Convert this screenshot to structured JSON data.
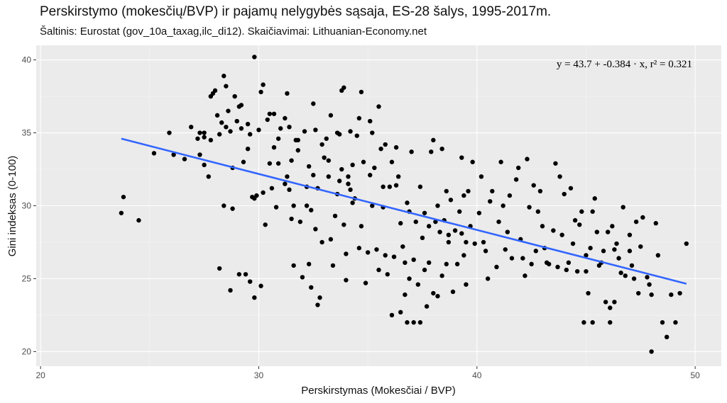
{
  "title": "Perskirstymo (mokesčių/BVP) ir pajamų nelygybės sąsaja, ES-28 šalys, 1995-2017m.",
  "subtitle": "Šaltinis: Eurostat (gov_10a_taxag,ilc_di12). Skaičiavimai: Lithuanian-Economy.net",
  "colors": {
    "panel": "#ebebeb",
    "grid_major": "#ffffff",
    "grid_minor": "#f5f5f5",
    "points": "#000000",
    "fit": "#3366ff"
  },
  "chart_data": {
    "type": "scatter",
    "xlabel": "Perskirstymas (Mokesčiai / BVP)",
    "ylabel": "Gini indeksas (0-100)",
    "xlim": [
      19.8,
      51.2
    ],
    "ylim": [
      19.0,
      41.0
    ],
    "x_ticks": [
      20,
      30,
      40,
      50
    ],
    "y_ticks": [
      20,
      25,
      30,
      35,
      40
    ],
    "grid": true,
    "annotation": "y = 43.7 + -0.384 · x,   r² = 0.321",
    "regression": {
      "intercept": 43.7,
      "slope": -0.384,
      "r2": 0.321,
      "x_range": [
        23.7,
        49.6
      ]
    },
    "points": [
      [
        23.7,
        29.5
      ],
      [
        23.8,
        30.6
      ],
      [
        24.5,
        29.0
      ],
      [
        25.2,
        33.6
      ],
      [
        25.9,
        35.0
      ],
      [
        26.1,
        33.5
      ],
      [
        26.6,
        33.2
      ],
      [
        26.9,
        35.4
      ],
      [
        27.2,
        34.6
      ],
      [
        27.3,
        33.5
      ],
      [
        27.3,
        35.0
      ],
      [
        27.5,
        35.0
      ],
      [
        27.5,
        32.8
      ],
      [
        27.7,
        32.0
      ],
      [
        27.8,
        34.5
      ],
      [
        27.8,
        37.5
      ],
      [
        28.0,
        37.9
      ],
      [
        28.1,
        36.2
      ],
      [
        28.2,
        34.9
      ],
      [
        28.3,
        35.7
      ],
      [
        28.4,
        38.9
      ],
      [
        28.4,
        30.0
      ],
      [
        28.5,
        35.4
      ],
      [
        28.6,
        36.5
      ],
      [
        28.7,
        35.1
      ],
      [
        28.8,
        29.8
      ],
      [
        28.9,
        37.5
      ],
      [
        29.0,
        35.8
      ],
      [
        29.1,
        36.8
      ],
      [
        29.2,
        35.3
      ],
      [
        29.3,
        33.0
      ],
      [
        29.4,
        25.3
      ],
      [
        29.5,
        35.6
      ],
      [
        29.6,
        34.9
      ],
      [
        29.7,
        30.6
      ],
      [
        29.8,
        40.2
      ],
      [
        29.8,
        30.5
      ],
      [
        29.9,
        30.7
      ],
      [
        30.0,
        35.2
      ],
      [
        30.1,
        37.8
      ],
      [
        30.2,
        38.3
      ],
      [
        30.3,
        28.7
      ],
      [
        30.4,
        35.9
      ],
      [
        30.5,
        36.3
      ],
      [
        30.6,
        31.2
      ],
      [
        30.7,
        34.0
      ],
      [
        30.9,
        34.6
      ],
      [
        31.0,
        35.3
      ],
      [
        31.2,
        31.5
      ],
      [
        31.3,
        37.7
      ],
      [
        31.4,
        35.4
      ],
      [
        31.5,
        33.1
      ],
      [
        31.6,
        30.0
      ],
      [
        31.7,
        34.5
      ],
      [
        31.8,
        34.5
      ],
      [
        31.9,
        28.9
      ],
      [
        32.0,
        25.1
      ],
      [
        32.1,
        35.1
      ],
      [
        32.2,
        30.0
      ],
      [
        32.3,
        26.0
      ],
      [
        32.4,
        29.7
      ],
      [
        32.5,
        32.1
      ],
      [
        32.6,
        35.2
      ],
      [
        32.7,
        31.2
      ],
      [
        32.8,
        23.7
      ],
      [
        32.9,
        27.5
      ],
      [
        33.0,
        33.3
      ],
      [
        33.1,
        34.6
      ],
      [
        33.2,
        32.0
      ],
      [
        33.3,
        36.2
      ],
      [
        33.4,
        25.9
      ],
      [
        33.5,
        29.3
      ],
      [
        33.6,
        35.0
      ],
      [
        33.7,
        31.7
      ],
      [
        33.8,
        32.5
      ],
      [
        33.9,
        28.7
      ],
      [
        34.0,
        26.7
      ],
      [
        34.1,
        32.0
      ],
      [
        34.2,
        31.1
      ],
      [
        34.3,
        32.8
      ],
      [
        34.4,
        30.5
      ],
      [
        34.5,
        34.8
      ],
      [
        34.6,
        36.0
      ],
      [
        34.7,
        28.6
      ],
      [
        34.8,
        33.0
      ],
      [
        34.9,
        24.7
      ],
      [
        35.0,
        26.8
      ],
      [
        35.1,
        35.8
      ],
      [
        35.2,
        30.0
      ],
      [
        35.3,
        32.6
      ],
      [
        35.4,
        27.0
      ],
      [
        35.5,
        25.6
      ],
      [
        35.6,
        33.9
      ],
      [
        35.7,
        31.3
      ],
      [
        35.8,
        34.2
      ],
      [
        35.9,
        25.3
      ],
      [
        36.0,
        31.3
      ],
      [
        36.1,
        22.5
      ],
      [
        36.2,
        26.5
      ],
      [
        36.3,
        31.4
      ],
      [
        36.4,
        32.0
      ],
      [
        36.5,
        28.8
      ],
      [
        36.6,
        27.2
      ],
      [
        36.7,
        23.9
      ],
      [
        36.8,
        30.2
      ],
      [
        36.9,
        25.0
      ],
      [
        37.0,
        33.7
      ],
      [
        37.1,
        26.3
      ],
      [
        37.2,
        28.9
      ],
      [
        37.3,
        24.6
      ],
      [
        37.4,
        31.3
      ],
      [
        37.5,
        27.8
      ],
      [
        37.6,
        29.5
      ],
      [
        37.7,
        23.1
      ],
      [
        37.8,
        26.1
      ],
      [
        37.9,
        33.7
      ],
      [
        38.0,
        24.0
      ],
      [
        38.1,
        28.9
      ],
      [
        38.2,
        30.0
      ],
      [
        38.3,
        28.2
      ],
      [
        38.4,
        25.2
      ],
      [
        38.5,
        29.0
      ],
      [
        38.6,
        31.0
      ],
      [
        38.7,
        27.5
      ],
      [
        38.8,
        30.4
      ],
      [
        38.9,
        24.1
      ],
      [
        39.0,
        28.3
      ],
      [
        39.1,
        26.0
      ],
      [
        39.2,
        29.6
      ],
      [
        39.3,
        28.1
      ],
      [
        39.4,
        30.7
      ],
      [
        39.5,
        24.6
      ],
      [
        39.6,
        31.0
      ],
      [
        39.7,
        28.6
      ],
      [
        39.8,
        33.0
      ],
      [
        39.9,
        27.4
      ],
      [
        40.1,
        29.5
      ],
      [
        40.2,
        32.0
      ],
      [
        40.4,
        26.9
      ],
      [
        40.5,
        25.0
      ],
      [
        40.7,
        31.0
      ],
      [
        40.9,
        25.8
      ],
      [
        41.0,
        28.9
      ],
      [
        41.2,
        30.0
      ],
      [
        41.4,
        28.2
      ],
      [
        41.6,
        26.4
      ],
      [
        41.8,
        31.8
      ],
      [
        42.0,
        27.7
      ],
      [
        42.2,
        25.2
      ],
      [
        42.4,
        29.9
      ],
      [
        42.5,
        26.0
      ],
      [
        42.7,
        26.9
      ],
      [
        42.9,
        31.0
      ],
      [
        43.1,
        27.1
      ],
      [
        43.3,
        26.0
      ],
      [
        43.5,
        28.3
      ],
      [
        43.7,
        25.8
      ],
      [
        43.8,
        32.0
      ],
      [
        44.0,
        30.8
      ],
      [
        44.2,
        26.1
      ],
      [
        44.4,
        27.4
      ],
      [
        44.6,
        25.5
      ],
      [
        44.8,
        29.6
      ],
      [
        45.0,
        26.6
      ],
      [
        45.1,
        24.0
      ],
      [
        45.2,
        27.1
      ],
      [
        45.4,
        30.5
      ],
      [
        45.6,
        25.9
      ],
      [
        45.8,
        26.9
      ],
      [
        46.0,
        28.2
      ],
      [
        46.1,
        23.0
      ],
      [
        46.3,
        27.0
      ],
      [
        46.5,
        26.4
      ],
      [
        46.7,
        29.9
      ],
      [
        46.8,
        25.2
      ],
      [
        47.0,
        26.9
      ],
      [
        47.1,
        25.9
      ],
      [
        47.3,
        28.9
      ],
      [
        47.4,
        24.0
      ],
      [
        47.6,
        29.2
      ],
      [
        47.8,
        25.1
      ],
      [
        48.0,
        23.9
      ],
      [
        48.2,
        28.8
      ],
      [
        48.5,
        22.0
      ],
      [
        48.7,
        21.0
      ],
      [
        48.9,
        23.9
      ],
      [
        49.1,
        22.0
      ],
      [
        49.3,
        24.0
      ],
      [
        49.6,
        27.4
      ],
      [
        48.0,
        20.0
      ],
      [
        28.2,
        25.7
      ],
      [
        28.7,
        24.2
      ],
      [
        29.1,
        25.3
      ],
      [
        29.6,
        24.8
      ],
      [
        29.8,
        23.7
      ],
      [
        30.1,
        24.5
      ],
      [
        31.6,
        25.9
      ],
      [
        32.4,
        24.4
      ],
      [
        32.7,
        23.2
      ],
      [
        34.0,
        24.9
      ],
      [
        36.5,
        22.7
      ],
      [
        36.8,
        22.0
      ],
      [
        37.1,
        22.0
      ],
      [
        37.4,
        22.0
      ],
      [
        38.2,
        23.8
      ],
      [
        44.9,
        22.0
      ],
      [
        45.3,
        22.0
      ],
      [
        45.9,
        23.4
      ],
      [
        46.1,
        22.0
      ],
      [
        46.3,
        23.4
      ],
      [
        33.9,
        38.1
      ],
      [
        34.7,
        37.8
      ],
      [
        35.5,
        36.8
      ],
      [
        32.5,
        37.0
      ],
      [
        31.2,
        36.0
      ],
      [
        30.7,
        36.3
      ],
      [
        27.9,
        37.7
      ],
      [
        28.5,
        38.2
      ],
      [
        29.2,
        36.9
      ],
      [
        33.8,
        37.9
      ],
      [
        27.5,
        34.7
      ],
      [
        28.8,
        32.6
      ],
      [
        29.5,
        33.9
      ],
      [
        30.9,
        32.9
      ],
      [
        31.8,
        33.8
      ],
      [
        32.9,
        34.2
      ],
      [
        33.7,
        34.9
      ],
      [
        34.2,
        35.1
      ],
      [
        35.2,
        35.0
      ],
      [
        36.3,
        34.0
      ],
      [
        30.5,
        32.9
      ],
      [
        31.3,
        32.0
      ],
      [
        32.2,
        31.3
      ],
      [
        33.6,
        30.8
      ],
      [
        34.3,
        30.2
      ],
      [
        35.7,
        29.9
      ],
      [
        36.9,
        29.6
      ],
      [
        37.8,
        28.6
      ],
      [
        38.7,
        28.0
      ],
      [
        39.5,
        27.5
      ],
      [
        30.8,
        29.9
      ],
      [
        31.5,
        29.1
      ],
      [
        32.6,
        28.4
      ],
      [
        33.3,
        27.7
      ],
      [
        34.6,
        27.1
      ],
      [
        35.8,
        26.6
      ],
      [
        36.7,
        26.1
      ],
      [
        37.6,
        25.6
      ],
      [
        38.6,
        26.0
      ],
      [
        39.4,
        26.6
      ],
      [
        40.3,
        27.5
      ],
      [
        41.3,
        27.0
      ],
      [
        42.1,
        26.4
      ],
      [
        43.2,
        26.1
      ],
      [
        44.1,
        25.6
      ],
      [
        45.0,
        25.5
      ],
      [
        45.7,
        26.1
      ],
      [
        46.6,
        25.4
      ],
      [
        47.2,
        25.0
      ],
      [
        47.9,
        24.6
      ],
      [
        40.6,
        30.3
      ],
      [
        41.5,
        30.7
      ],
      [
        42.6,
        31.4
      ],
      [
        43.6,
        32.9
      ],
      [
        44.3,
        31.2
      ],
      [
        45.3,
        29.6
      ],
      [
        46.2,
        28.6
      ],
      [
        47.0,
        28.0
      ],
      [
        44.7,
        28.7
      ],
      [
        43.9,
        28.0
      ],
      [
        41.9,
        32.6
      ],
      [
        42.3,
        33.2
      ],
      [
        43.0,
        28.6
      ],
      [
        44.5,
        29.0
      ],
      [
        45.5,
        28.2
      ],
      [
        46.4,
        27.4
      ],
      [
        47.5,
        27.2
      ],
      [
        48.3,
        26.6
      ],
      [
        42.8,
        29.6
      ],
      [
        41.1,
        33.0
      ],
      [
        38.0,
        34.5
      ],
      [
        38.4,
        33.9
      ],
      [
        39.3,
        33.3
      ],
      [
        36.1,
        33.0
      ],
      [
        35.1,
        32.1
      ],
      [
        34.1,
        31.5
      ],
      [
        33.2,
        33.1
      ],
      [
        32.3,
        32.7
      ],
      [
        31.4,
        31.1
      ],
      [
        30.2,
        30.9
      ]
    ]
  }
}
